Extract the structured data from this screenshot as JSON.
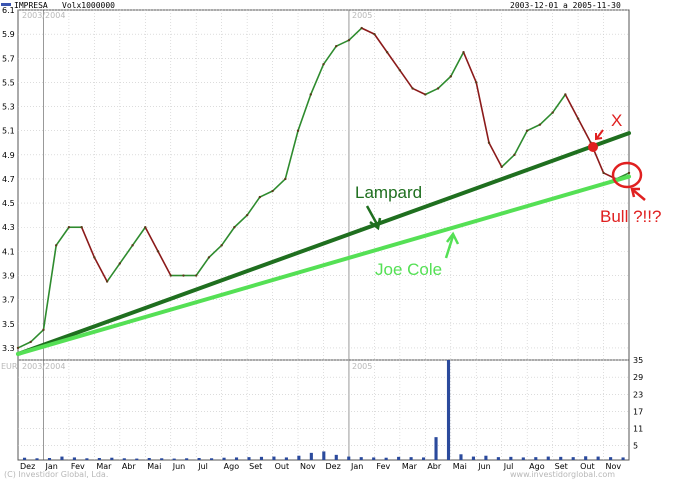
{
  "header": {
    "symbol": "IMPRESA",
    "volume_label": "Volx1000000",
    "date_range": "2003-12-01 a 2005-11-30"
  },
  "watermarks": {
    "price_year_a": "2003/2004",
    "price_year_b": "2005",
    "volume_year_a": "2003/2004",
    "volume_year_b": "2005",
    "volume_currency": "EUR",
    "copyright": "(C) Investidor Global, Lda.",
    "site": "www.investidorglobal.com"
  },
  "annotations": {
    "lampard": "Lampard",
    "joe_cole": "Joe Cole",
    "x_mark": "X",
    "bull": "Bull ?!!?"
  },
  "colors": {
    "price_up": "#2e8b2e",
    "price_down": "#8b1a1a",
    "volume": "#2b4a9c",
    "trend_dark": "#1f6f1f",
    "trend_light": "#55e055",
    "annotation_red": "#e02020"
  },
  "chart_data": [
    {
      "type": "line",
      "title": "IMPRESA",
      "y_axis_side": "right",
      "ylim": [
        3.2,
        6.1
      ],
      "yticks": [
        "3.3",
        "3.5",
        "3.7",
        "3.9",
        "4.1",
        "4.3",
        "4.5",
        "4.7",
        "4.9",
        "5.1",
        "5.3",
        "5.5",
        "5.7",
        "5.9",
        "6.1"
      ],
      "ytick_values": [
        3.3,
        3.5,
        3.7,
        3.9,
        4.1,
        4.3,
        4.5,
        4.7,
        4.9,
        5.1,
        5.3,
        5.5,
        5.7,
        5.9,
        6.1
      ],
      "x_labels": [
        "Dez",
        "Jan",
        "Fev",
        "Mar",
        "Abr",
        "Mai",
        "Jun",
        "Jul",
        "Ago",
        "Set",
        "Out",
        "Nov",
        "Dez",
        "Jan",
        "Fev",
        "Mar",
        "Abr",
        "Mai",
        "Jun",
        "Jul",
        "Ago",
        "Set",
        "Out",
        "Nov"
      ],
      "series": [
        {
          "values": [
            3.3,
            3.35,
            3.45,
            4.15,
            4.3,
            4.3,
            4.05,
            3.85,
            4.0,
            4.15,
            4.3,
            4.1,
            3.9,
            3.9,
            3.9,
            4.05,
            4.15,
            4.3,
            4.4,
            4.55,
            4.6,
            4.7,
            5.1,
            5.4,
            5.65,
            5.8,
            5.85,
            5.95,
            5.9,
            5.75,
            5.6,
            5.45,
            5.4,
            5.45,
            5.55,
            5.75,
            5.5,
            5.0,
            4.8,
            4.9,
            5.1,
            5.15,
            5.25,
            5.4,
            5.2,
            5.0,
            4.75,
            4.7,
            4.75
          ]
        }
      ],
      "trend_lines": [
        {
          "label": "Lampard",
          "points": [
            [
              0,
              3.25
            ],
            [
              48,
              5.08
            ]
          ]
        },
        {
          "label": "Joe Cole",
          "points": [
            [
              0,
              3.25
            ],
            [
              48,
              4.72
            ]
          ]
        }
      ]
    },
    {
      "type": "bar",
      "title": "Volx1000000",
      "y_axis_side": "right",
      "ylim": [
        0,
        35
      ],
      "yticks": [
        "5",
        "11",
        "17",
        "23",
        "29",
        "35"
      ],
      "ytick_values": [
        5,
        11,
        17,
        23,
        29,
        35
      ],
      "series": [
        {
          "values": [
            0.8,
            0.6,
            0.7,
            1.2,
            0.9,
            0.6,
            0.7,
            0.8,
            0.6,
            0.5,
            0.7,
            0.6,
            0.5,
            0.6,
            0.7,
            0.6,
            0.8,
            0.9,
            1.0,
            1.1,
            1.2,
            0.9,
            1.5,
            2.5,
            3.0,
            1.8,
            1.2,
            1.0,
            0.9,
            0.8,
            1.1,
            1.0,
            0.9,
            8.0,
            35,
            2.0,
            1.2,
            1.5,
            1.0,
            1.1,
            0.9,
            1.0,
            1.2,
            1.1,
            1.0,
            1.3,
            1.2,
            1.0,
            0.9
          ]
        }
      ]
    }
  ]
}
